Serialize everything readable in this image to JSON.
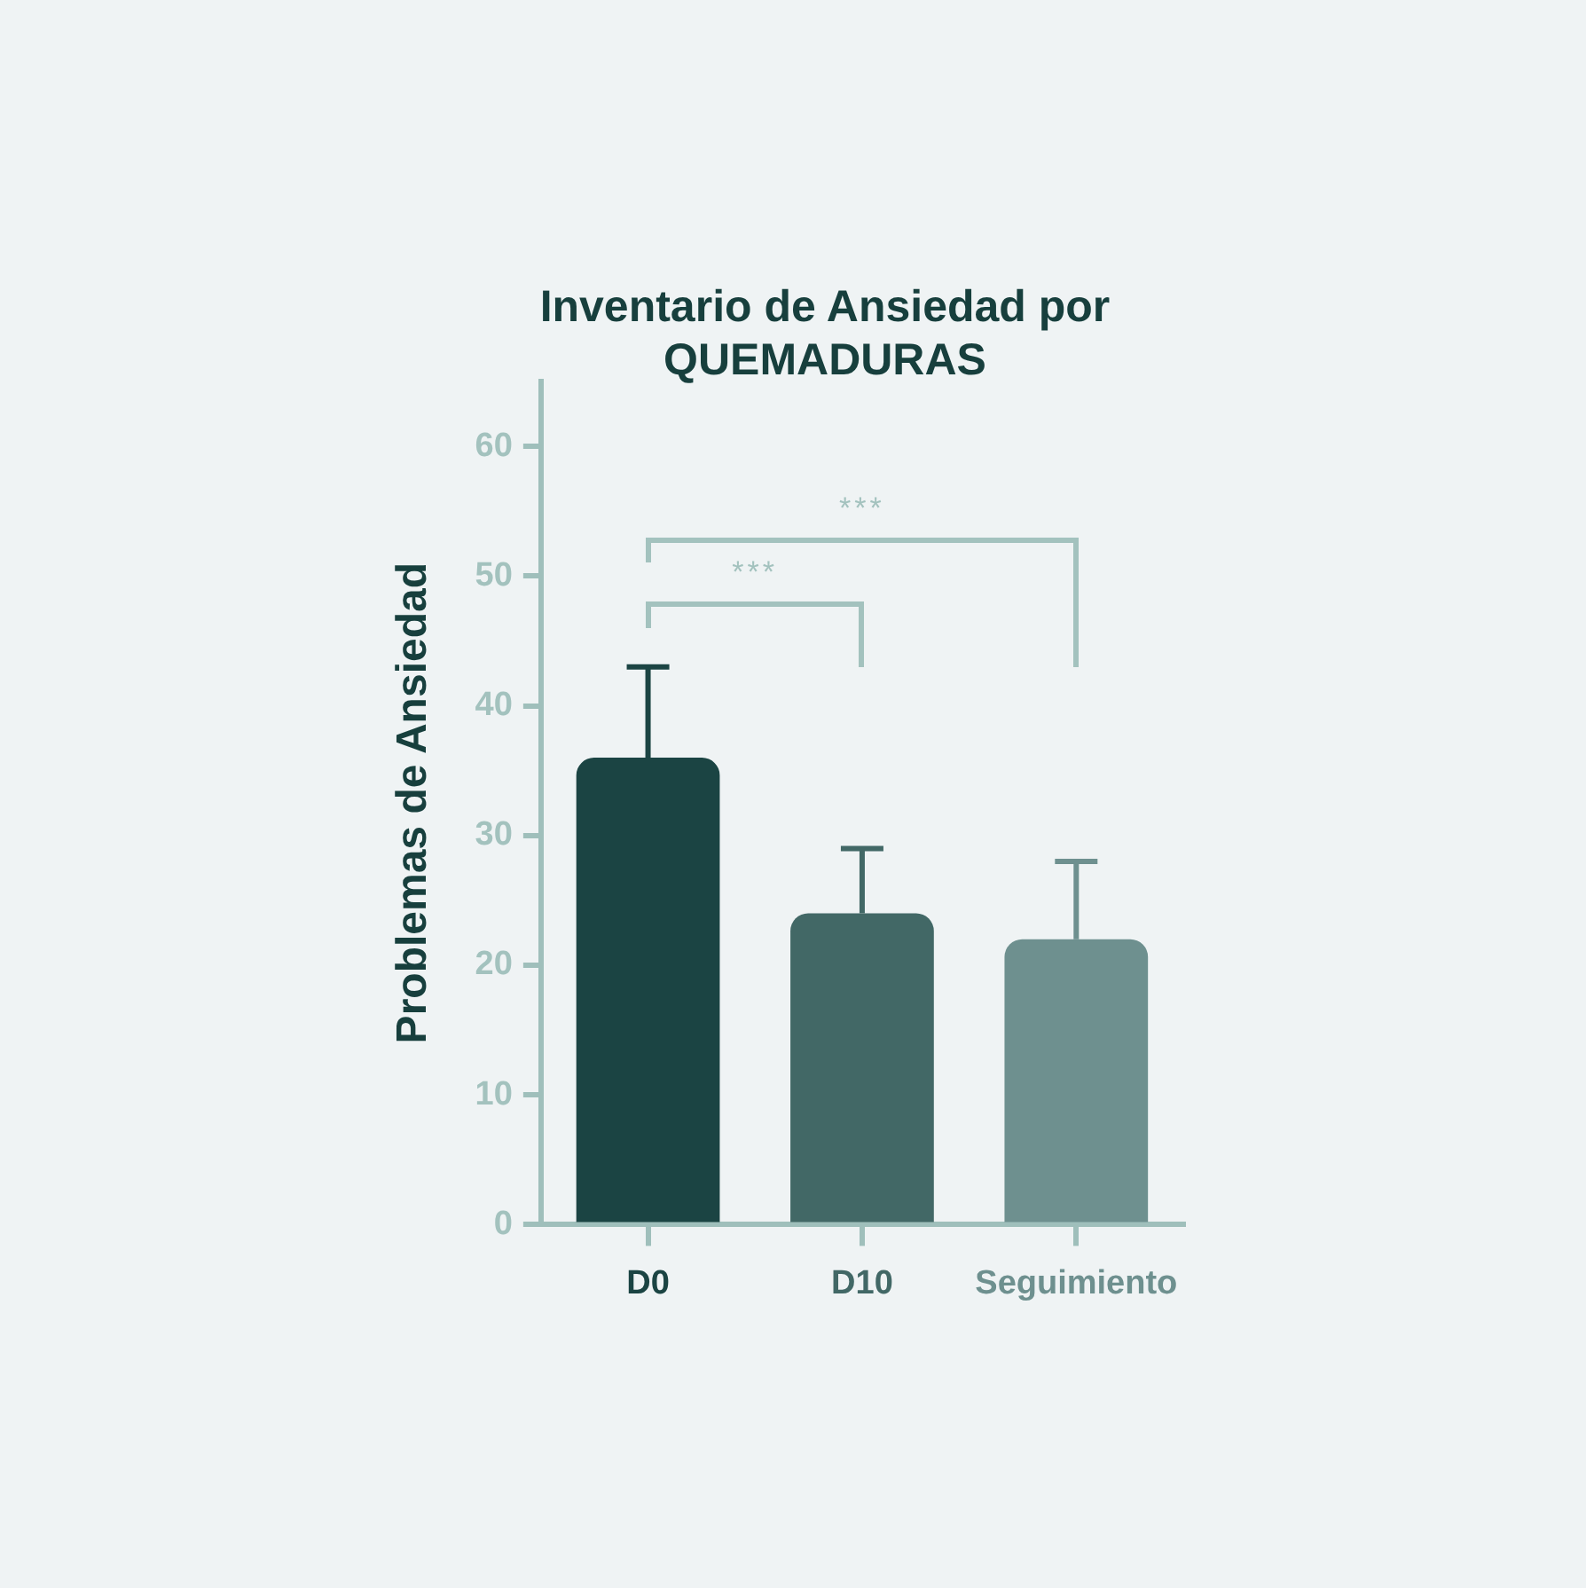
{
  "chart_data": {
    "type": "bar",
    "title": "Inventario de Ansiedad por QUEMADURAS",
    "ylabel": "Problemas de Ansiedad",
    "categories": [
      "D0",
      "D10",
      "Seguimiento"
    ],
    "values": [
      36,
      24,
      22
    ],
    "colors": [
      "#1b4443",
      "#426866",
      "#6e908f"
    ],
    "errors": [
      [
        36,
        43
      ],
      [
        24,
        29
      ],
      [
        22,
        28
      ]
    ],
    "ylim": [
      0,
      65
    ],
    "yticks": [
      0,
      10,
      20,
      30,
      40,
      50,
      60
    ],
    "grid": false,
    "legend": false,
    "annotations": [
      "***",
      "***"
    ]
  }
}
